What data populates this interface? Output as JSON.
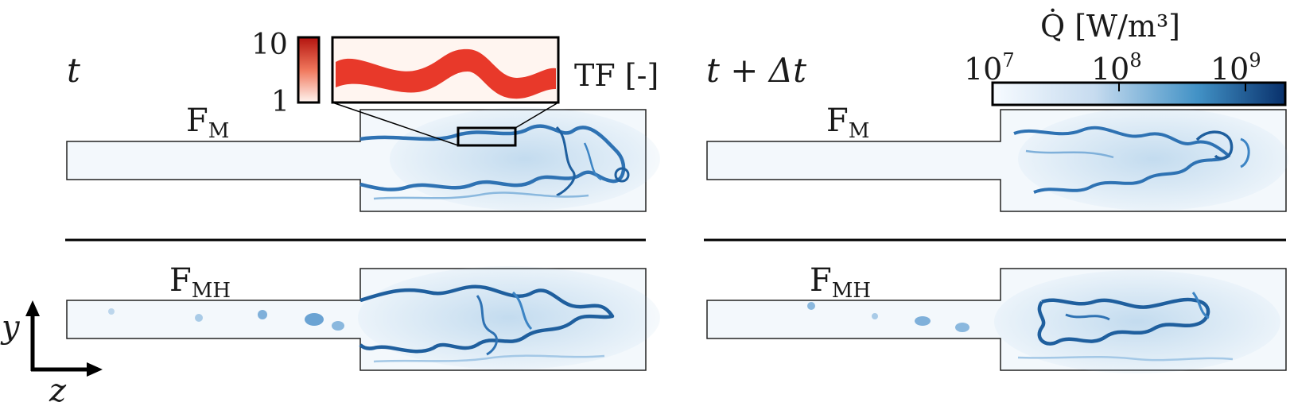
{
  "left_column": {
    "time_label": "t"
  },
  "right_column": {
    "time_label": "t + Δt"
  },
  "top_row": {
    "label": "F",
    "subscript": "M"
  },
  "bottom_row": {
    "label": "F",
    "subscript": "MH"
  },
  "tf_legend": {
    "max": "10",
    "min": "1",
    "label": "TF [-]"
  },
  "q_colorbar": {
    "title": "Q̇ [W/m³]",
    "ticks": [
      {
        "base": "10",
        "exp": "7"
      },
      {
        "base": "10",
        "exp": "8"
      },
      {
        "base": "10",
        "exp": "9"
      }
    ]
  },
  "axes": {
    "y": "y",
    "z": "z"
  },
  "colors": {
    "flame_dark": "#1f5f9e",
    "flame_mid": "#5a9bd0",
    "flame_light": "#cfe2f3",
    "tf_red": "#e8392a",
    "domain_fill": "#f3f8fc"
  }
}
